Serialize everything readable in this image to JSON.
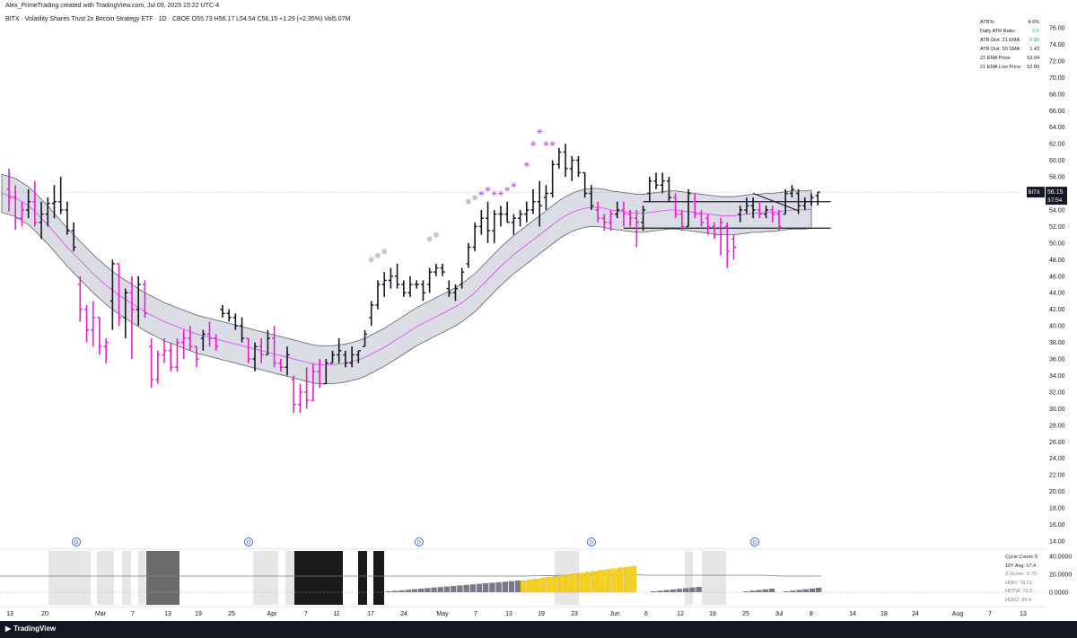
{
  "header": {
    "credit": "Alex_PrimeTrading created with TradingView.com, Jul 09, 2025 15:22 UTC-4",
    "symbol_line": "BITX · Volatility Shares Trust 2x Bitcoin Strategy ETF · 1D · CBOE  O55.73  H56.17  L54.54  C56.15  +1.29 (+2.35%)  Vol5.07M"
  },
  "stats": [
    {
      "label": "ATR%:",
      "value": "4.6%",
      "color": ""
    },
    {
      "label": "Daily ATR Ratio:",
      "value": "0.5",
      "color": "green"
    },
    {
      "label": "ATR Dist. 21 EMA:",
      "value": "0.89",
      "color": "green"
    },
    {
      "label": "ATR Dist. 50 SMA:",
      "value": "1.43",
      "color": ""
    },
    {
      "label": "21 EMA Price:",
      "value": "53.94",
      "color": ""
    },
    {
      "label": "21 EMA Low Price:",
      "value": "52.89",
      "color": ""
    }
  ],
  "cycle": {
    "count": "Cycle Count: 5",
    "avg": "10Y Avg: 17.4",
    "zscore": "Z-Score: -0.75",
    "hdfi": "HDFI: 78.21",
    "hdtw": "HDTW: 79.2",
    "hdfd": "HDFD: 59.4"
  },
  "price_tag": {
    "symbol": "BITX",
    "price": "56.15",
    "countdown": "37:54"
  },
  "footer": {
    "logo": "TradingView"
  },
  "colors": {
    "up": "#131722",
    "down": "#e91ec8",
    "ema": "#e040fb",
    "band": "#b2b5be",
    "yellow": "#f5d020",
    "dot_pink": "#e6b3f2",
    "dot_grey": "#c8c8c8"
  },
  "chart_data": {
    "type": "ohlc",
    "y_axis": {
      "ticks": [
        "76.00",
        "74.00",
        "72.00",
        "70.00",
        "68.00",
        "66.00",
        "64.00",
        "62.00",
        "60.00",
        "58.00",
        "56.00",
        "54.00",
        "52.00",
        "50.00",
        "48.00",
        "46.00",
        "44.00",
        "42.00",
        "40.00",
        "38.00",
        "36.00",
        "34.00",
        "32.00",
        "30.00",
        "28.00",
        "26.00",
        "24.00",
        "22.00",
        "20.00",
        "18.00",
        "16.00",
        "14.00"
      ],
      "range": [
        13,
        77
      ]
    },
    "x_axis": {
      "ticks": [
        "13",
        "20",
        "Mar",
        "7",
        "13",
        "19",
        "25",
        "Apr",
        "7",
        "11",
        "17",
        "24",
        "May",
        "7",
        "13",
        "19",
        "23",
        "Jun",
        "6",
        "12",
        "18",
        "25",
        "Jul",
        "8",
        "14",
        "18",
        "24",
        "Aug",
        "7",
        "13"
      ]
    },
    "sub_panel_ticks": [
      "40.0000",
      "20.0000",
      "0.0000"
    ],
    "last_price": 56.15,
    "levels": [
      55.0,
      51.8,
      53.9
    ],
    "bars": [
      [
        56.5,
        59.0,
        53.8,
        55.5
      ],
      [
        55.5,
        57.0,
        51.6,
        53.0
      ],
      [
        53.0,
        55.0,
        52.0,
        54.0
      ],
      [
        54.0,
        56.5,
        53.0,
        55.0
      ],
      [
        55.0,
        57.5,
        52.0,
        52.5
      ],
      [
        52.5,
        55.0,
        50.5,
        53.5
      ],
      [
        53.5,
        55.5,
        52.0,
        54.8
      ],
      [
        54.8,
        57.0,
        53.0,
        55.0
      ],
      [
        55.0,
        58.0,
        53.5,
        54.0
      ],
      [
        54.0,
        55.0,
        51.0,
        51.5
      ],
      [
        51.5,
        52.5,
        49.0,
        49.5
      ],
      [
        45.0,
        46.0,
        40.5,
        42.0
      ],
      [
        42.0,
        42.5,
        38.0,
        39.5
      ],
      [
        39.5,
        43.0,
        37.5,
        41.0
      ],
      [
        41.0,
        41.0,
        36.5,
        37.5
      ],
      [
        37.5,
        38.5,
        35.5,
        38.0
      ],
      [
        43.0,
        48.0,
        39.5,
        47.5
      ],
      [
        47.5,
        47.5,
        40.0,
        41.0
      ],
      [
        41.0,
        44.5,
        38.5,
        44.0
      ],
      [
        44.0,
        46.0,
        36.0,
        42.0
      ],
      [
        42.0,
        46.0,
        40.0,
        45.0
      ],
      [
        45.0,
        45.5,
        41.0,
        41.5
      ],
      [
        37.5,
        38.5,
        32.5,
        33.5
      ],
      [
        33.5,
        37.0,
        33.0,
        36.5
      ],
      [
        36.5,
        38.5,
        35.5,
        37.0
      ],
      [
        37.0,
        38.0,
        34.5,
        35.0
      ],
      [
        35.0,
        38.5,
        34.5,
        38.0
      ],
      [
        38.0,
        39.5,
        36.0,
        38.5
      ],
      [
        38.5,
        40.0,
        37.0,
        37.5
      ],
      [
        37.5,
        37.5,
        35.0,
        36.0
      ],
      [
        38.5,
        39.5,
        37.0,
        39.0
      ],
      [
        39.0,
        40.5,
        37.5,
        38.5
      ],
      [
        38.5,
        39.0,
        37.0,
        37.5
      ],
      [
        42.0,
        42.5,
        41.0,
        41.5
      ],
      [
        41.5,
        42.0,
        40.5,
        41.0
      ],
      [
        41.0,
        41.5,
        39.5,
        40.0
      ],
      [
        40.0,
        41.0,
        38.0,
        38.5
      ],
      [
        38.5,
        38.5,
        35.5,
        36.0
      ],
      [
        36.0,
        38.0,
        34.5,
        37.5
      ],
      [
        37.5,
        38.5,
        35.5,
        36.5
      ],
      [
        36.5,
        39.5,
        36.5,
        38.5
      ],
      [
        38.5,
        40.0,
        35.0,
        35.5
      ],
      [
        35.5,
        36.0,
        34.5,
        35.0
      ],
      [
        35.0,
        37.5,
        34.0,
        36.5
      ],
      [
        33.5,
        34.0,
        29.5,
        30.5
      ],
      [
        30.5,
        33.0,
        29.5,
        32.0
      ],
      [
        32.0,
        35.0,
        30.0,
        31.0
      ],
      [
        31.0,
        35.5,
        31.0,
        34.5
      ],
      [
        34.5,
        36.0,
        32.5,
        33.0
      ],
      [
        33.0,
        36.0,
        33.0,
        35.5
      ],
      [
        35.5,
        37.0,
        35.5,
        36.5
      ],
      [
        36.5,
        38.5,
        35.5,
        37.0
      ],
      [
        36.5,
        37.0,
        35.0,
        35.5
      ],
      [
        35.5,
        37.5,
        35.0,
        36.5
      ],
      [
        36.5,
        37.0,
        35.5,
        37.0
      ],
      [
        37.5,
        39.5,
        37.5,
        39.0
      ],
      [
        41.0,
        43.0,
        40.0,
        42.5
      ],
      [
        42.5,
        45.5,
        42.0,
        45.0
      ],
      [
        45.0,
        46.5,
        43.5,
        45.5
      ],
      [
        45.5,
        47.0,
        44.5,
        46.0
      ],
      [
        46.0,
        47.5,
        44.5,
        45.0
      ],
      [
        45.0,
        45.5,
        43.5,
        44.0
      ],
      [
        44.0,
        46.0,
        43.5,
        45.0
      ],
      [
        45.0,
        45.5,
        44.5,
        45.0
      ],
      [
        45.0,
        45.5,
        43.0,
        44.0
      ],
      [
        45.0,
        47.0,
        44.0,
        46.5
      ],
      [
        46.5,
        47.5,
        46.0,
        47.0
      ],
      [
        47.0,
        47.5,
        46.0,
        46.5
      ],
      [
        44.5,
        45.5,
        43.5,
        44.0
      ],
      [
        44.0,
        45.0,
        43.0,
        44.5
      ],
      [
        45.0,
        47.0,
        44.5,
        46.5
      ],
      [
        47.5,
        50.0,
        47.0,
        49.5
      ],
      [
        49.5,
        52.5,
        49.0,
        52.0
      ],
      [
        52.0,
        54.0,
        51.0,
        53.0
      ],
      [
        53.0,
        55.0,
        50.0,
        51.5
      ],
      [
        51.5,
        54.0,
        50.0,
        53.5
      ],
      [
        53.5,
        54.5,
        52.0,
        53.5
      ],
      [
        53.5,
        55.0,
        52.5,
        52.5
      ],
      [
        52.5,
        53.5,
        51.0,
        53.0
      ],
      [
        53.0,
        54.0,
        52.0,
        53.5
      ],
      [
        53.5,
        55.0,
        52.5,
        54.0
      ],
      [
        54.0,
        56.5,
        53.5,
        55.0
      ],
      [
        55.0,
        57.5,
        52.0,
        54.5
      ],
      [
        55.5,
        57.0,
        54.0,
        56.0
      ],
      [
        56.0,
        60.0,
        55.5,
        59.5
      ],
      [
        59.5,
        61.5,
        59.0,
        61.0
      ],
      [
        61.0,
        62.0,
        58.0,
        59.0
      ],
      [
        59.0,
        60.5,
        57.5,
        60.0
      ],
      [
        60.0,
        60.5,
        58.0,
        58.5
      ],
      [
        58.5,
        58.5,
        55.5,
        56.0
      ],
      [
        56.0,
        57.0,
        54.0,
        54.5
      ],
      [
        54.0,
        55.0,
        52.5,
        53.0
      ],
      [
        53.0,
        53.5,
        51.5,
        52.5
      ],
      [
        52.5,
        54.0,
        51.5,
        53.5
      ],
      [
        53.5,
        55.0,
        53.0,
        54.0
      ],
      [
        54.0,
        55.0,
        52.0,
        53.5
      ],
      [
        53.5,
        54.0,
        52.0,
        53.0
      ],
      [
        53.0,
        54.0,
        49.5,
        52.5
      ],
      [
        52.5,
        54.5,
        51.5,
        54.0
      ],
      [
        56.0,
        58.0,
        55.0,
        57.5
      ],
      [
        57.5,
        58.5,
        56.5,
        57.0
      ],
      [
        57.0,
        58.5,
        56.0,
        57.5
      ],
      [
        57.5,
        58.0,
        55.0,
        55.5
      ],
      [
        55.5,
        56.0,
        53.0,
        53.5
      ],
      [
        53.5,
        54.0,
        51.5,
        52.0
      ],
      [
        52.0,
        56.5,
        52.0,
        56.0
      ],
      [
        55.0,
        56.0,
        53.0,
        53.5
      ],
      [
        53.5,
        54.0,
        52.0,
        52.5
      ],
      [
        53.0,
        53.5,
        51.0,
        52.0
      ],
      [
        52.0,
        52.5,
        50.5,
        51.0
      ],
      [
        51.0,
        53.0,
        48.5,
        52.5
      ],
      [
        52.0,
        52.5,
        47.0,
        49.0
      ],
      [
        50.5,
        51.0,
        48.0,
        49.5
      ],
      [
        53.5,
        54.5,
        52.5,
        54.0
      ],
      [
        54.0,
        55.5,
        53.5,
        54.5
      ],
      [
        54.5,
        55.5,
        53.0,
        54.0
      ],
      [
        54.0,
        55.0,
        53.0,
        53.5
      ],
      [
        53.5,
        54.5,
        53.0,
        54.0
      ],
      [
        54.0,
        54.5,
        52.5,
        53.5
      ],
      [
        53.5,
        54.0,
        51.5,
        52.0
      ],
      [
        53.5,
        56.5,
        53.5,
        56.0
      ],
      [
        56.0,
        57.0,
        55.5,
        56.5
      ],
      [
        56.0,
        56.5,
        53.5,
        54.5
      ],
      [
        54.5,
        55.5,
        54.0,
        55.0
      ],
      [
        55.0,
        56.0,
        54.5,
        55.5
      ],
      [
        55.73,
        56.17,
        54.54,
        56.15
      ]
    ],
    "ema21": [
      56.0,
      55.5,
      55.0,
      54.5,
      53.8,
      53.0,
      52.2,
      51.3,
      50.4,
      49.5,
      48.7,
      47.9,
      47.1,
      46.3,
      45.6,
      44.9,
      44.3,
      43.7,
      43.2,
      42.7,
      42.2,
      41.7,
      41.3,
      40.9,
      40.5,
      40.2,
      39.9,
      39.6,
      39.3,
      39.0,
      38.8,
      38.6,
      38.4,
      38.2,
      38.0,
      37.8,
      37.6,
      37.4,
      37.2,
      37.0,
      36.8,
      36.6,
      36.4,
      36.2,
      36.0,
      35.8,
      35.6,
      35.4,
      35.3,
      35.3,
      35.3,
      35.4,
      35.5,
      35.7,
      35.9,
      36.2,
      36.6,
      37.0,
      37.4,
      37.9,
      38.4,
      38.9,
      39.4,
      39.9,
      40.3,
      40.7,
      41.1,
      41.5,
      41.9,
      42.3,
      42.8,
      43.4,
      44.0,
      44.8,
      45.6,
      46.4,
      47.2,
      47.9,
      48.6,
      49.2,
      49.8,
      50.4,
      51.0,
      51.6,
      52.2,
      52.8,
      53.3,
      53.7,
      54.0,
      54.2,
      54.3,
      54.3,
      54.2,
      54.0,
      53.9,
      53.8,
      53.7,
      53.6,
      53.6,
      53.7,
      53.8,
      53.9,
      54.0,
      54.0,
      53.9,
      53.8,
      53.7,
      53.6,
      53.5,
      53.4,
      53.3,
      53.3,
      53.3,
      53.4,
      53.5,
      53.6,
      53.6,
      53.7,
      53.7,
      53.8,
      53.9,
      54.0,
      54.0,
      54.0,
      54.1
    ],
    "upper_dots": [
      [
        56,
        48.0
      ],
      [
        57,
        48.5
      ],
      [
        58,
        49.0
      ],
      [
        65,
        50.5
      ],
      [
        66,
        51.0
      ],
      [
        71,
        55.0
      ],
      [
        72,
        55.5
      ],
      [
        73,
        56.0
      ],
      [
        74,
        56.5
      ],
      [
        75,
        56.0
      ],
      [
        76,
        56.0
      ],
      [
        77,
        56.5
      ],
      [
        78,
        57.0
      ],
      [
        80,
        59.5
      ],
      [
        81,
        62.0
      ],
      [
        82,
        63.5
      ],
      [
        83,
        62.0
      ],
      [
        84,
        62.0
      ]
    ],
    "sub_histogram": [
      {
        "from": 54,
        "to": 71,
        "color": "grey",
        "start": 1,
        "end": 13
      },
      {
        "from": 72,
        "to": 87,
        "color": "yellow",
        "start": 13,
        "end": 29
      }
    ],
    "events": [
      "D",
      "D",
      "D",
      "D",
      "D"
    ]
  }
}
